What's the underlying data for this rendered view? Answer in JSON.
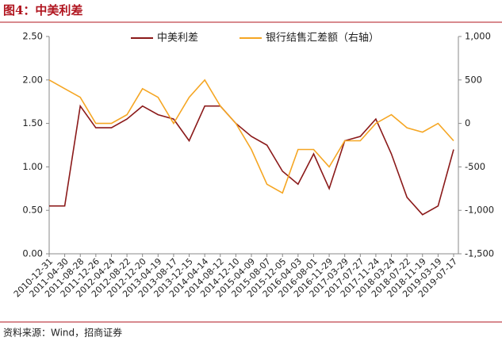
{
  "chart_data": {
    "type": "line",
    "title": "图4：中美利差",
    "source": "资料来源：Wind，招商证券",
    "categories": [
      "2010-12-31",
      "2011-04-30",
      "2011-08-28",
      "2011-12-26",
      "2012-04-24",
      "2012-08-22",
      "2012-12-20",
      "2013-04-19",
      "2013-08-17",
      "2013-12-15",
      "2014-04-14",
      "2014-08-12",
      "2014-12-10",
      "2015-04-09",
      "2015-08-07",
      "2015-12-05",
      "2016-04-03",
      "2016-08-01",
      "2016-11-29",
      "2017-03-29",
      "2017-07-27",
      "2017-11-24",
      "2018-03-24",
      "2018-07-22",
      "2018-11-19",
      "2019-03-19",
      "2019-07-17"
    ],
    "series": [
      {
        "name": "中美利差",
        "color": "#8b1a1a",
        "axis": "y",
        "values": [
          0.55,
          0.55,
          1.7,
          1.45,
          1.45,
          1.55,
          1.7,
          1.6,
          1.55,
          1.3,
          1.7,
          1.7,
          1.5,
          1.35,
          1.25,
          0.95,
          0.8,
          1.15,
          0.75,
          1.3,
          1.35,
          1.55,
          1.15,
          0.65,
          0.45,
          0.55,
          1.2
        ]
      },
      {
        "name": "银行结售汇差额（右轴）",
        "color": "#f5a623",
        "axis": "y2",
        "values": [
          500,
          400,
          300,
          0,
          0,
          100,
          400,
          300,
          0,
          300,
          500,
          200,
          0,
          -300,
          -700,
          -800,
          -300,
          -300,
          -500,
          -200,
          -200,
          0,
          100,
          -50,
          -100,
          0,
          -200
        ]
      }
    ],
    "ylim": [
      0,
      2.5
    ],
    "yticks": [
      {
        "value": 0,
        "label": "0.00"
      },
      {
        "value": 0.5,
        "label": "0.50"
      },
      {
        "value": 1,
        "label": "1.00"
      },
      {
        "value": 1.5,
        "label": "1.50"
      },
      {
        "value": 2,
        "label": "2.00"
      },
      {
        "value": 2.5,
        "label": "2.50"
      }
    ],
    "y2lim": [
      -1500,
      1000
    ],
    "y2ticks": [
      {
        "value": -1500,
        "label": "-1,500"
      },
      {
        "value": -1000,
        "label": "-1,000"
      },
      -500,
      0,
      500,
      {
        "value": 1000,
        "label": "1,000"
      }
    ],
    "legend": "top"
  }
}
